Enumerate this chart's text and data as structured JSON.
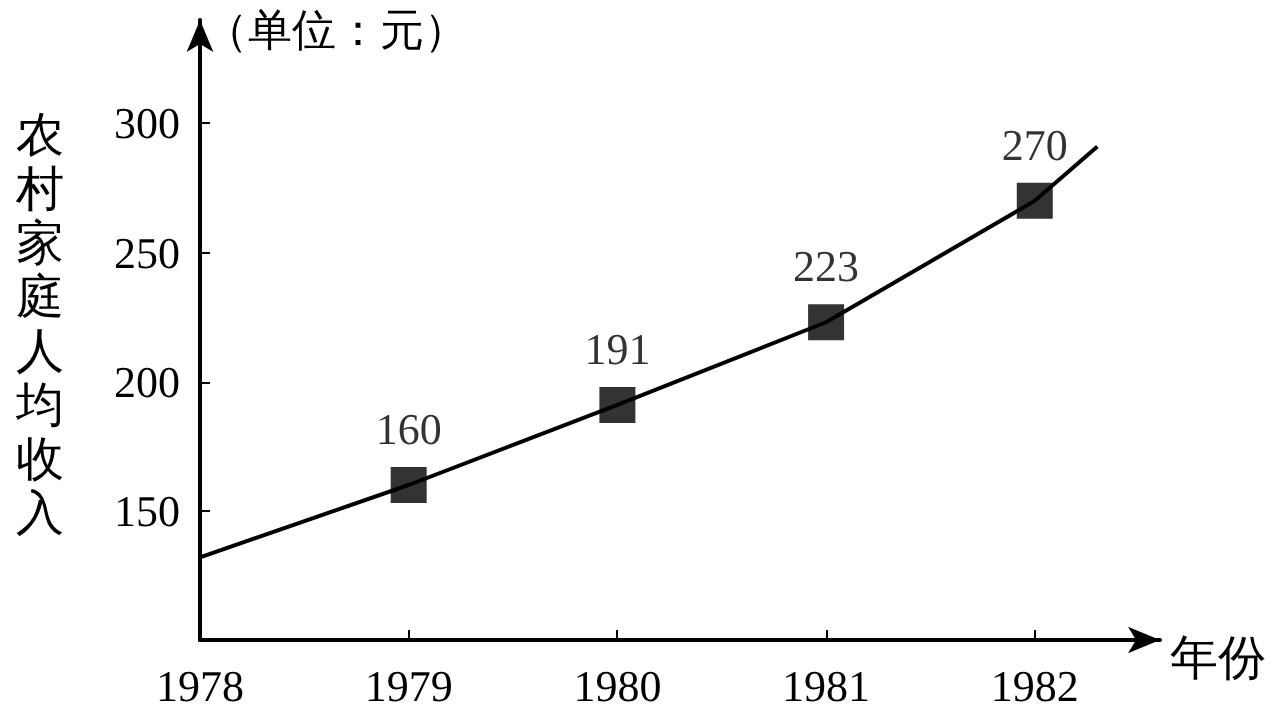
{
  "chart_data": {
    "type": "line",
    "ylabel": "农村家庭人均收入",
    "xlabel": "年份",
    "annotations": [
      "（单位：元）"
    ],
    "series": [
      {
        "color": "#000000",
        "marker": "none",
        "x": [
          1978,
          1979,
          1980,
          1981,
          1982,
          1982.3
        ],
        "values": [
          132,
          160,
          191,
          223,
          270,
          291
        ]
      },
      {
        "type": "scatter",
        "color": "#000000",
        "marker": "square",
        "data_labels": true,
        "x": [
          1979,
          1980,
          1981,
          1982
        ],
        "values": [
          160,
          191,
          223,
          270
        ]
      }
    ],
    "xlim": [
      1978,
      1982.6
    ],
    "xticks": [
      1978,
      1979,
      1980,
      1981,
      1982
    ],
    "ylim": [
      100,
      340
    ],
    "yticks": [
      150,
      200,
      250,
      300
    ],
    "grid": false
  }
}
